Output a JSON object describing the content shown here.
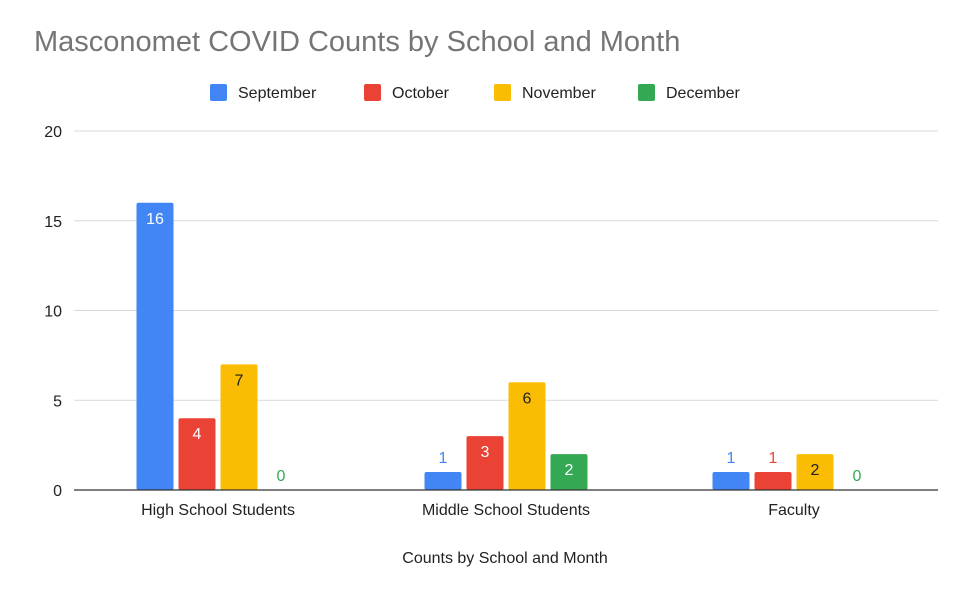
{
  "chart_data": {
    "type": "bar",
    "title": "Masconomet COVID Counts by School and Month",
    "xlabel": "Counts by School and Month",
    "ylabel": "",
    "categories": [
      "High School Students",
      "Middle School Students",
      "Faculty"
    ],
    "series": [
      {
        "name": "September",
        "values": [
          16,
          1,
          1
        ],
        "color": "#4285F4"
      },
      {
        "name": "October",
        "values": [
          4,
          3,
          1
        ],
        "color": "#EA4335"
      },
      {
        "name": "November",
        "values": [
          7,
          6,
          2
        ],
        "color": "#FBBC04"
      },
      {
        "name": "December",
        "values": [
          0,
          2,
          0
        ],
        "color": "#34A853"
      }
    ],
    "ylim": [
      0,
      20
    ],
    "yticks": [
      0,
      5,
      10,
      15,
      20
    ],
    "grid": true,
    "legend_position": "top-center"
  }
}
